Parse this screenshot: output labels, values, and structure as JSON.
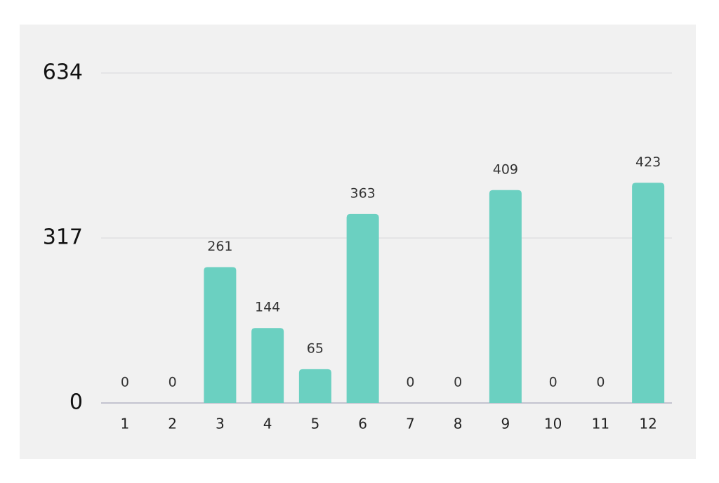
{
  "chart_data": {
    "type": "bar",
    "categories": [
      "1",
      "2",
      "3",
      "4",
      "5",
      "6",
      "7",
      "8",
      "9",
      "10",
      "11",
      "12"
    ],
    "values": [
      0,
      0,
      261,
      144,
      65,
      363,
      0,
      0,
      409,
      0,
      0,
      423
    ],
    "color": "#6bd0c1",
    "ylim": [
      0,
      634
    ],
    "yticks": [
      0,
      317,
      634
    ],
    "grid": true
  }
}
